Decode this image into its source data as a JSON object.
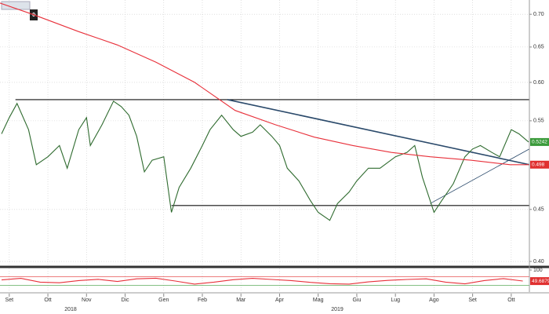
{
  "chart_data": [
    {
      "type": "line",
      "log": true,
      "grid": true,
      "xlim": [
        -0.24,
        13.47
      ],
      "ylim": [
        0.3965,
        0.723
      ],
      "xticks": [
        {
          "value": 0,
          "label": "Set"
        },
        {
          "value": 1,
          "label": "Ott"
        },
        {
          "value": 2,
          "label": "Nov"
        },
        {
          "value": 3,
          "label": "Dic"
        },
        {
          "value": 4,
          "label": "Gen"
        },
        {
          "value": 5,
          "label": "Feb"
        },
        {
          "value": 6,
          "label": "Mar"
        },
        {
          "value": 7,
          "label": "Apr"
        },
        {
          "value": 8,
          "label": "Mag"
        },
        {
          "value": 9,
          "label": "Giu"
        },
        {
          "value": 10,
          "label": "Lug"
        },
        {
          "value": 11,
          "label": "Ago"
        },
        {
          "value": 12,
          "label": "Set"
        },
        {
          "value": 13,
          "label": "Ott"
        }
      ],
      "x_group_labels": [
        "2018",
        "2019"
      ],
      "yticks": [
        {
          "value": 0.7,
          "label": "0.70"
        },
        {
          "value": 0.65,
          "label": "0.65"
        },
        {
          "value": 0.6,
          "label": "0.60"
        },
        {
          "value": 0.55,
          "label": "0.55"
        },
        {
          "value": 0.45,
          "label": "0.45"
        },
        {
          "value": 0.4,
          "label": "0.40"
        }
      ],
      "series": [
        {
          "color": "#2f6b2f",
          "x": [
            -0.2,
            0,
            0.2,
            0.5,
            0.7,
            1,
            1.3,
            1.5,
            1.8,
            2,
            2.1,
            2.4,
            2.7,
            2.9,
            3.1,
            3.3,
            3.5,
            3.7,
            4,
            4.2,
            4.4,
            4.7,
            5,
            5.2,
            5.5,
            5.8,
            6,
            6.3,
            6.5,
            6.8,
            7,
            7.2,
            7.5,
            7.8,
            8,
            8.3,
            8.5,
            8.8,
            9,
            9.3,
            9.6,
            10,
            10.3,
            10.5,
            10.7,
            11,
            11.2,
            11.5,
            11.8,
            12,
            12.2,
            12.5,
            12.7,
            13,
            13.2,
            13.45
          ],
          "values": [
            0.534,
            0.554,
            0.572,
            0.539,
            0.498,
            0.507,
            0.52,
            0.494,
            0.539,
            0.554,
            0.52,
            0.545,
            0.575,
            0.568,
            0.557,
            0.531,
            0.49,
            0.503,
            0.507,
            0.447,
            0.473,
            0.494,
            0.52,
            0.539,
            0.557,
            0.539,
            0.531,
            0.536,
            0.545,
            0.531,
            0.52,
            0.494,
            0.48,
            0.459,
            0.447,
            0.439,
            0.456,
            0.468,
            0.48,
            0.494,
            0.494,
            0.507,
            0.512,
            0.52,
            0.484,
            0.447,
            0.459,
            0.477,
            0.507,
            0.516,
            0.52,
            0.512,
            0.507,
            0.539,
            0.534,
            0.5242
          ]
        },
        {
          "color": "#e8303a",
          "x": [
            -0.24,
            0.6,
            1.8,
            2.8,
            3.8,
            4.8,
            5.85,
            6.9,
            7.9,
            8.9,
            9.9,
            10.9,
            11.95,
            12.97,
            13.47
          ],
          "values": [
            0.718,
            0.7,
            0.673,
            0.653,
            0.628,
            0.6,
            0.563,
            0.545,
            0.53,
            0.52,
            0.512,
            0.507,
            0.503,
            0.498,
            0.498
          ]
        }
      ],
      "hlines": [
        {
          "x": [
            0.16,
            13.47
          ],
          "y": [
            0.577,
            0.577
          ]
        },
        {
          "x": [
            4.2,
            13.47
          ],
          "y": [
            0.454,
            0.454
          ]
        }
      ],
      "trendlines": [
        {
          "color": "#2b4a6b",
          "x": [
            5.65,
            13.47
          ],
          "y": [
            0.577,
            0.498
          ]
        },
        {
          "color": "#2b4a6b",
          "x": [
            10.9,
            13.47
          ],
          "y": [
            0.456,
            0.516
          ]
        }
      ],
      "price_tags": [
        {
          "value": 0.5242,
          "label": "0.5242",
          "color": "#3a9a3a"
        },
        {
          "value": 0.498,
          "label": "0.498",
          "color": "#e03030"
        }
      ],
      "toolbar_badge": "0"
    },
    {
      "type": "line",
      "xlim": [
        -0.24,
        13.47
      ],
      "ylim": [
        0,
        100
      ],
      "yticks": [
        100
      ],
      "levels": [
        70,
        30
      ],
      "series": [
        {
          "color": "#e8303a",
          "x": [
            -0.2,
            0.3,
            0.8,
            1.3,
            1.8,
            2.3,
            2.8,
            3.3,
            3.8,
            4.3,
            4.8,
            5.3,
            5.8,
            6.3,
            6.8,
            7.3,
            7.8,
            8.3,
            8.8,
            9.3,
            9.8,
            10.3,
            10.8,
            11.3,
            11.8,
            12.3,
            12.8,
            13.3
          ],
          "values": [
            55,
            62,
            45,
            42,
            52,
            58,
            48,
            60,
            63,
            50,
            36,
            45,
            56,
            62,
            57,
            52,
            44,
            38,
            36,
            46,
            53,
            57,
            60,
            45,
            37,
            52,
            61,
            50
          ]
        }
      ],
      "price_tags": [
        {
          "value": 49.6879,
          "label": "49.6879",
          "color": "#e03030"
        }
      ]
    }
  ]
}
